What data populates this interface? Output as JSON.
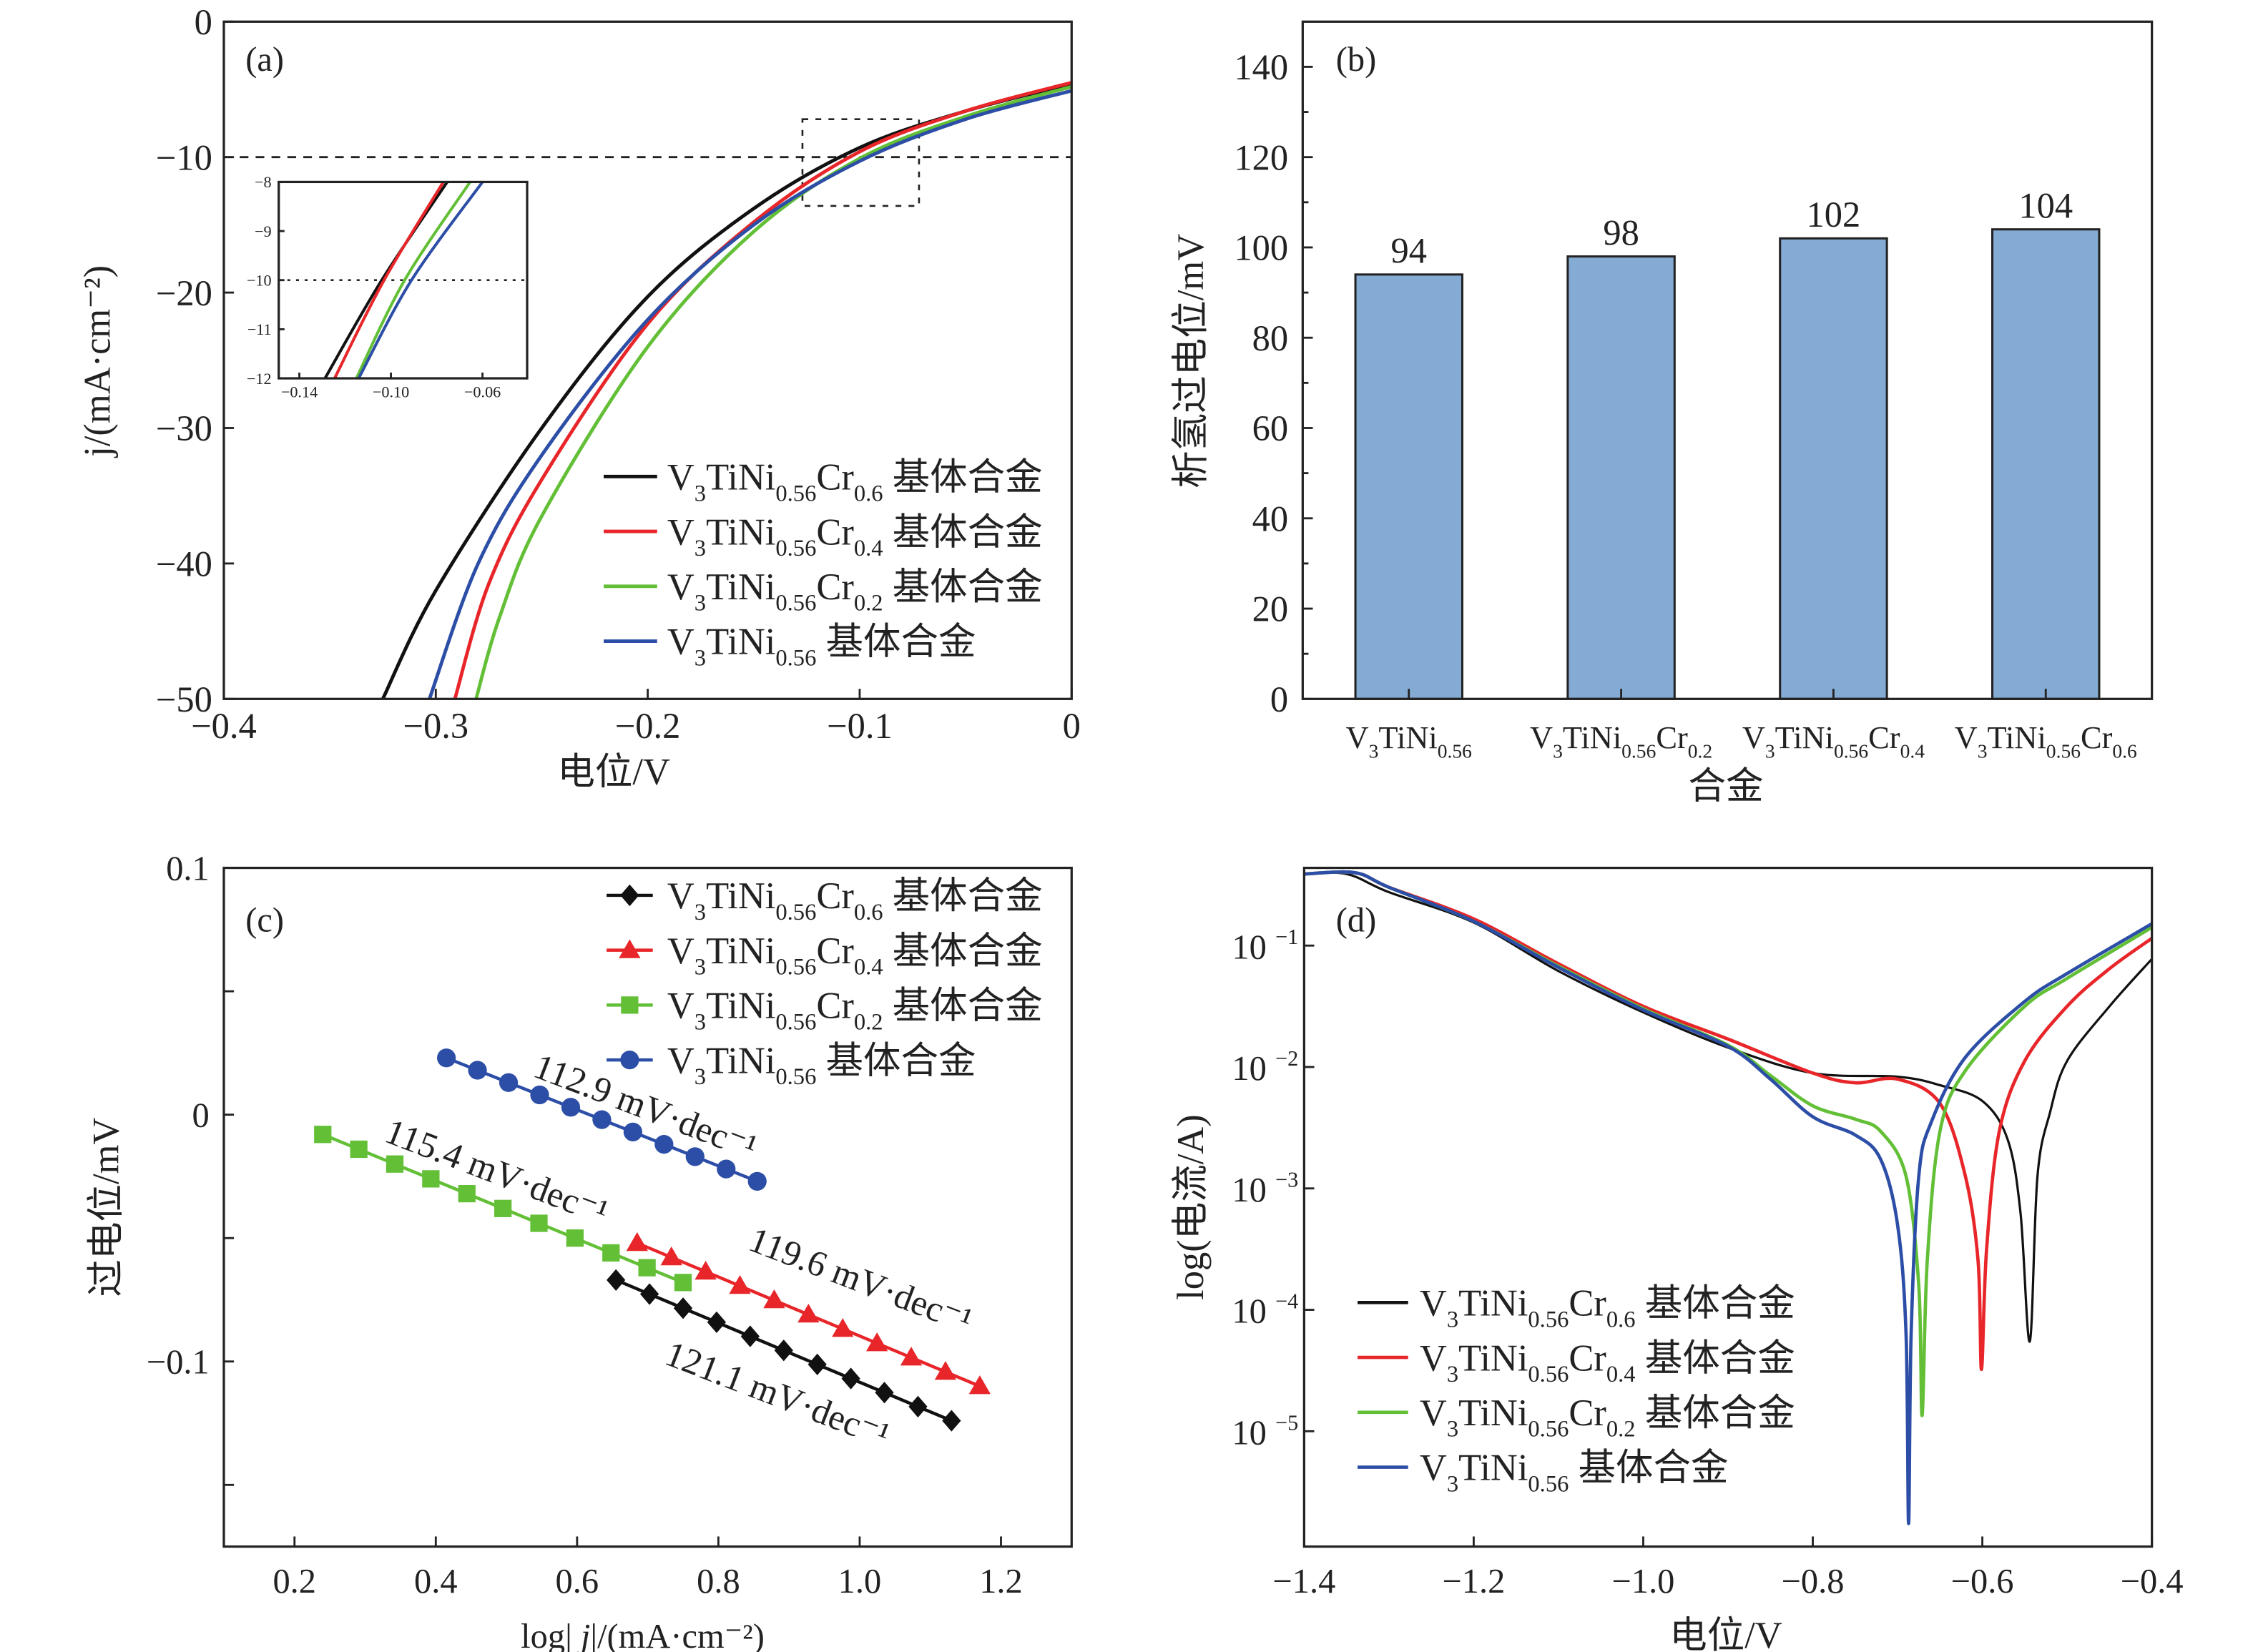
{
  "colors": {
    "black": "#111111",
    "red": "#e8262a",
    "green": "#62bf36",
    "blue": "#2c4ea6",
    "bar": "#84abd3"
  },
  "chart_data": [
    {
      "id": "a",
      "type": "line",
      "panel_label": "(a)",
      "xlabel": "电位/V",
      "ylabel": "j/(mA·cm⁻²)",
      "xlim": [
        -0.4,
        0
      ],
      "ylim": [
        -50,
        0
      ],
      "xticks": [
        -0.4,
        -0.3,
        -0.2,
        -0.1,
        0
      ],
      "xticklabels": [
        "−0.4",
        "−0.3",
        "−0.2",
        "−0.1",
        "0"
      ],
      "yticks": [
        0,
        -10,
        -20,
        -30,
        -40,
        -50
      ],
      "yticklabels": [
        "0",
        "−10",
        "−20",
        "−30",
        "−40",
        "−50"
      ],
      "reference_line_y": -10,
      "zoom_box": {
        "x": [
          -0.127,
          -0.072
        ],
        "y": [
          -13.6,
          -7.2
        ]
      },
      "legend_position": "bottom-right",
      "series": [
        {
          "name": {
            "formula": [
              "V",
              "3",
              "TiNi",
              "0.56",
              "Cr",
              "0.6"
            ],
            "suffix": "基体合金"
          },
          "color": "black",
          "x": [
            0,
            -0.05,
            -0.1,
            -0.15,
            -0.2,
            -0.25,
            -0.3,
            -0.325
          ],
          "y": [
            -4.6,
            -6.6,
            -9.3,
            -13.8,
            -20.3,
            -30,
            -42,
            -50
          ]
        },
        {
          "name": {
            "formula": [
              "V",
              "3",
              "TiNi",
              "0.56",
              "Cr",
              "0.4"
            ],
            "suffix": "基体合金"
          },
          "color": "red",
          "x": [
            0,
            -0.05,
            -0.1,
            -0.15,
            -0.2,
            -0.25,
            -0.275,
            -0.291
          ],
          "y": [
            -4.5,
            -6.6,
            -9.6,
            -14.8,
            -22.3,
            -33.8,
            -41.5,
            -50
          ]
        },
        {
          "name": {
            "formula": [
              "V",
              "3",
              "TiNi",
              "0.56",
              "Cr",
              "0.2"
            ],
            "suffix": "基体合金"
          },
          "color": "green",
          "x": [
            0,
            -0.05,
            -0.1,
            -0.15,
            -0.2,
            -0.25,
            -0.27,
            -0.281
          ],
          "y": [
            -4.8,
            -7,
            -10.1,
            -15.5,
            -24,
            -36.5,
            -44,
            -50
          ]
        },
        {
          "name": {
            "formula": [
              "V",
              "3",
              "TiNi",
              "0.56"
            ],
            "suffix": "基体合金"
          },
          "color": "blue",
          "x": [
            0,
            -0.05,
            -0.1,
            -0.15,
            -0.2,
            -0.25,
            -0.28,
            -0.303
          ],
          "y": [
            -5.1,
            -7.2,
            -10.3,
            -15,
            -22,
            -32,
            -40,
            -50
          ]
        }
      ],
      "inset": {
        "xlim": [
          -0.149,
          -0.0405
        ],
        "ylim": [
          -12,
          -8
        ],
        "xticks": [
          -0.14,
          -0.1,
          -0.06
        ],
        "xticklabels": [
          "−0.14",
          "−0.10",
          "−0.06"
        ],
        "yticks": [
          -8,
          -9,
          -10,
          -11,
          -12
        ],
        "yticklabels": [
          "−8",
          "−9",
          "−10",
          "−11",
          "−12"
        ],
        "reference_line_y": -10,
        "series": [
          {
            "color": "black",
            "x": [
              -0.1288,
              -0.104,
              -0.0754
            ],
            "y": [
              -12,
              -10,
              -8
            ]
          },
          {
            "color": "red",
            "x": [
              -0.1246,
              -0.103,
              -0.0771
            ],
            "y": [
              -12,
              -10,
              -8
            ]
          },
          {
            "color": "green",
            "x": [
              -0.1151,
              -0.094,
              -0.0654
            ],
            "y": [
              -12,
              -10,
              -8
            ]
          },
          {
            "color": "blue",
            "x": [
              -0.1141,
              -0.091,
              -0.06
            ],
            "y": [
              -12,
              -10,
              -8
            ]
          }
        ]
      }
    },
    {
      "id": "b",
      "type": "bar",
      "panel_label": "(b)",
      "xlabel": "合金",
      "ylabel": "析氢过电位/mV",
      "ylim": [
        0,
        150
      ],
      "yticks": [
        0,
        20,
        40,
        60,
        80,
        100,
        120,
        140
      ],
      "yticklabels": [
        "0",
        "20",
        "40",
        "60",
        "80",
        "100",
        "120",
        "140"
      ],
      "categories": [
        [
          "V",
          "3",
          "TiNi",
          "0.56"
        ],
        [
          "V",
          "3",
          "TiNi",
          "0.56",
          "Cr",
          "0.2"
        ],
        [
          "V",
          "3",
          "TiNi",
          "0.56",
          "Cr",
          "0.4"
        ],
        [
          "V",
          "3",
          "TiNi",
          "0.56",
          "Cr",
          "0.6"
        ]
      ],
      "values": [
        94,
        98,
        102,
        104
      ],
      "data_labels": [
        "94",
        "98",
        "102",
        "104"
      ]
    },
    {
      "id": "c",
      "type": "line",
      "panel_label": "(c)",
      "xlabel": "log| j|/(mA·cm⁻²)",
      "ylabel": "过电位/mV",
      "xlim": [
        0.1,
        1.3
      ],
      "ylim": [
        -0.175,
        0.1
      ],
      "xticks": [
        0.2,
        0.4,
        0.6,
        0.8,
        1.0,
        1.2
      ],
      "xticklabels": [
        "0.2",
        "0.4",
        "0.6",
        "0.8",
        "1.0",
        "1.2"
      ],
      "yticks": [
        0.1,
        0,
        -0.1
      ],
      "yticklabels": [
        "0.1",
        "0",
        "−0.1"
      ],
      "legend_position": "top-right",
      "series": [
        {
          "name": {
            "formula": [
              "V",
              "3",
              "TiNi",
              "0.56",
              "Cr",
              "0.6"
            ],
            "suffix": "基体合金"
          },
          "color": "black",
          "marker": "diamond",
          "x_start": 0.655,
          "x_end": 1.13,
          "y_start": -0.067,
          "y_end": -0.124,
          "n_points": 11
        },
        {
          "name": {
            "formula": [
              "V",
              "3",
              "TiNi",
              "0.56",
              "Cr",
              "0.4"
            ],
            "suffix": "基体合金"
          },
          "color": "red",
          "marker": "triangle",
          "x_start": 0.685,
          "x_end": 1.17,
          "y_start": -0.052,
          "y_end": -0.11,
          "n_points": 11
        },
        {
          "name": {
            "formula": [
              "V",
              "3",
              "TiNi",
              "0.56",
              "Cr",
              "0.2"
            ],
            "suffix": "基体合金"
          },
          "color": "green",
          "marker": "square",
          "x_start": 0.24,
          "x_end": 0.75,
          "y_start": -0.008,
          "y_end": -0.068,
          "n_points": 11
        },
        {
          "name": {
            "formula": [
              "V",
              "3",
              "TiNi",
              "0.56"
            ],
            "suffix": "基体合金"
          },
          "color": "blue",
          "marker": "circle",
          "x_start": 0.415,
          "x_end": 0.855,
          "y_start": 0.023,
          "y_end": -0.027,
          "n_points": 11
        }
      ],
      "annotations": [
        "112.9 mV·dec⁻¹",
        "115.4 mV·dec⁻¹",
        "119.6 mV·dec⁻¹",
        "121.1 mV·dec⁻¹"
      ]
    },
    {
      "id": "d",
      "type": "line",
      "panel_label": "(d)",
      "xlabel": "电位/V",
      "ylabel": "log(电流/A)",
      "xlim": [
        -1.4,
        -0.4
      ],
      "ylim_log10": [
        -5.95,
        -0.36
      ],
      "yscale": "log",
      "xticks": [
        -1.4,
        -1.2,
        -1.0,
        -0.8,
        -0.6,
        -0.4
      ],
      "xticklabels": [
        "−1.4",
        "−1.2",
        "−1.0",
        "−0.8",
        "−0.6",
        "−0.4"
      ],
      "yticks_log10": [
        -1,
        -2,
        -3,
        -4,
        -5
      ],
      "yticklabels": [
        [
          "10",
          "−1"
        ],
        [
          "10",
          "−2"
        ],
        [
          "10",
          "−3"
        ],
        [
          "10",
          "−4"
        ],
        [
          "10",
          "−5"
        ]
      ],
      "legend_position": "bottom-left",
      "series": [
        {
          "name": {
            "formula": [
              "V",
              "3",
              "TiNi",
              "0.56",
              "Cr",
              "0.6"
            ],
            "suffix": "基体合金"
          },
          "color": "black",
          "x": [
            -1.4,
            -1.35,
            -1.3,
            -1.2,
            -1.1,
            -1.0,
            -0.9,
            -0.8,
            -0.7,
            -0.65,
            -0.6,
            -0.57,
            -0.555,
            -0.544,
            -0.535,
            -0.52,
            -0.5,
            -0.45,
            -0.4
          ],
          "log10_y": [
            -0.41,
            -0.41,
            -0.56,
            -0.81,
            -1.21,
            -1.55,
            -1.84,
            -2.05,
            -2.08,
            -2.15,
            -2.28,
            -2.6,
            -3.2,
            -4.26,
            -2.9,
            -2.37,
            -1.95,
            -1.5,
            -1.11
          ]
        },
        {
          "name": {
            "formula": [
              "V",
              "3",
              "TiNi",
              "0.56",
              "Cr",
              "0.4"
            ],
            "suffix": "基体合金"
          },
          "color": "red",
          "x": [
            -1.4,
            -1.34,
            -1.3,
            -1.2,
            -1.1,
            -1.0,
            -0.9,
            -0.8,
            -0.75,
            -0.7,
            -0.65,
            -0.62,
            -0.605,
            -0.601,
            -0.595,
            -0.58,
            -0.55,
            -0.5,
            -0.45,
            -0.4
          ],
          "log10_y": [
            -0.41,
            -0.4,
            -0.52,
            -0.78,
            -1.15,
            -1.5,
            -1.77,
            -2.05,
            -2.13,
            -2.1,
            -2.3,
            -2.9,
            -3.6,
            -4.49,
            -3.5,
            -2.53,
            -1.95,
            -1.5,
            -1.19,
            -0.94
          ]
        },
        {
          "name": {
            "formula": [
              "V",
              "3",
              "TiNi",
              "0.56",
              "Cr",
              "0.2"
            ],
            "suffix": "基体合金"
          },
          "color": "green",
          "x": [
            -1.4,
            -1.34,
            -1.3,
            -1.2,
            -1.1,
            -1.0,
            -0.9,
            -0.85,
            -0.8,
            -0.75,
            -0.72,
            -0.69,
            -0.675,
            -0.671,
            -0.665,
            -0.65,
            -0.62,
            -0.55,
            -0.5,
            -0.4
          ],
          "log10_y": [
            -0.41,
            -0.4,
            -0.52,
            -0.8,
            -1.17,
            -1.52,
            -1.82,
            -2.07,
            -2.32,
            -2.43,
            -2.53,
            -2.9,
            -3.8,
            -4.87,
            -3.6,
            -2.53,
            -2.03,
            -1.5,
            -1.27,
            -0.85
          ]
        },
        {
          "name": {
            "formula": [
              "V",
              "3",
              "TiNi",
              "0.56"
            ],
            "suffix": "基体合金"
          },
          "color": "blue",
          "x": [
            -1.4,
            -1.34,
            -1.3,
            -1.2,
            -1.1,
            -1.0,
            -0.9,
            -0.85,
            -0.8,
            -0.75,
            -0.72,
            -0.7,
            -0.69,
            -0.687,
            -0.684,
            -0.675,
            -0.66,
            -0.62,
            -0.55,
            -0.5,
            -0.4
          ],
          "log10_y": [
            -0.41,
            -0.4,
            -0.52,
            -0.8,
            -1.18,
            -1.53,
            -1.83,
            -2.1,
            -2.41,
            -2.56,
            -2.76,
            -3.3,
            -4.2,
            -5.76,
            -4.2,
            -2.9,
            -2.45,
            -1.92,
            -1.46,
            -1.23,
            -0.82
          ]
        }
      ]
    }
  ]
}
